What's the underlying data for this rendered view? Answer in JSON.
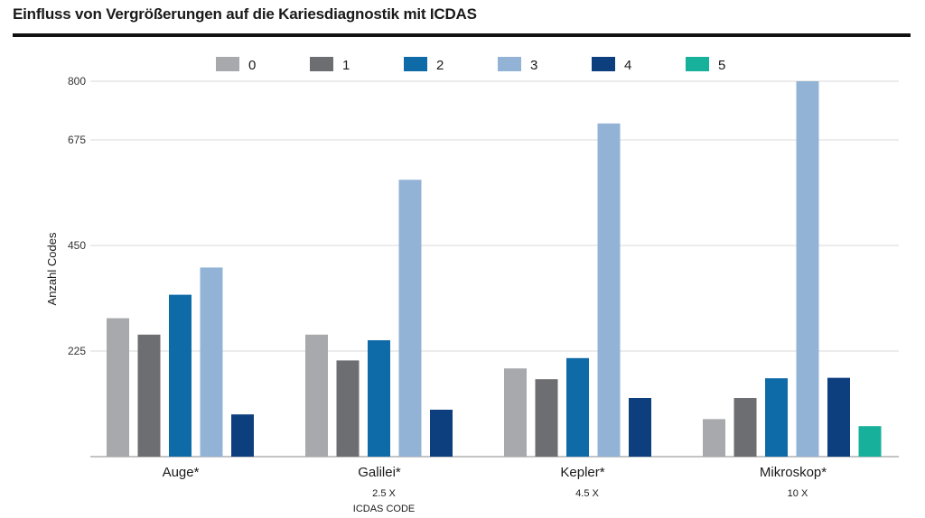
{
  "title": "Einfluss von Vergrößerungen auf die Kariesdiagnostik mit ICDAS",
  "chart_data": {
    "type": "bar",
    "title": "Einfluss von Vergrößerungen auf die Kariesdiagnostik mit ICDAS",
    "ylabel": "Anzahl Codes",
    "xlabel": "ICDAS CODE",
    "ylim": [
      0,
      800
    ],
    "yticks": [
      "225",
      "450",
      "675",
      "800"
    ],
    "yticks_values": [
      225,
      450,
      675,
      800
    ],
    "grid": true,
    "legend_position": "top",
    "categories": [
      "Auge*",
      "Galilei*",
      "Kepler*",
      "Mikroskop*"
    ],
    "category_sublabels": [
      "",
      "2.5 X",
      "4.5 X",
      "10 X"
    ],
    "series": [
      {
        "name": "0",
        "color": "#a7a9ac",
        "values": [
          295,
          260,
          188,
          80
        ]
      },
      {
        "name": "1",
        "color": "#6d6e71",
        "values": [
          260,
          205,
          165,
          125
        ]
      },
      {
        "name": "2",
        "color": "#0f6aa8",
        "values": [
          345,
          248,
          210,
          167
        ]
      },
      {
        "name": "3",
        "color": "#93b3d6",
        "values": [
          403,
          590,
          710,
          800
        ]
      },
      {
        "name": "4",
        "color": "#0d3f7f",
        "values": [
          90,
          100,
          125,
          168
        ]
      },
      {
        "name": "5",
        "color": "#17b09b",
        "values": [
          0,
          0,
          0,
          65
        ]
      }
    ]
  }
}
